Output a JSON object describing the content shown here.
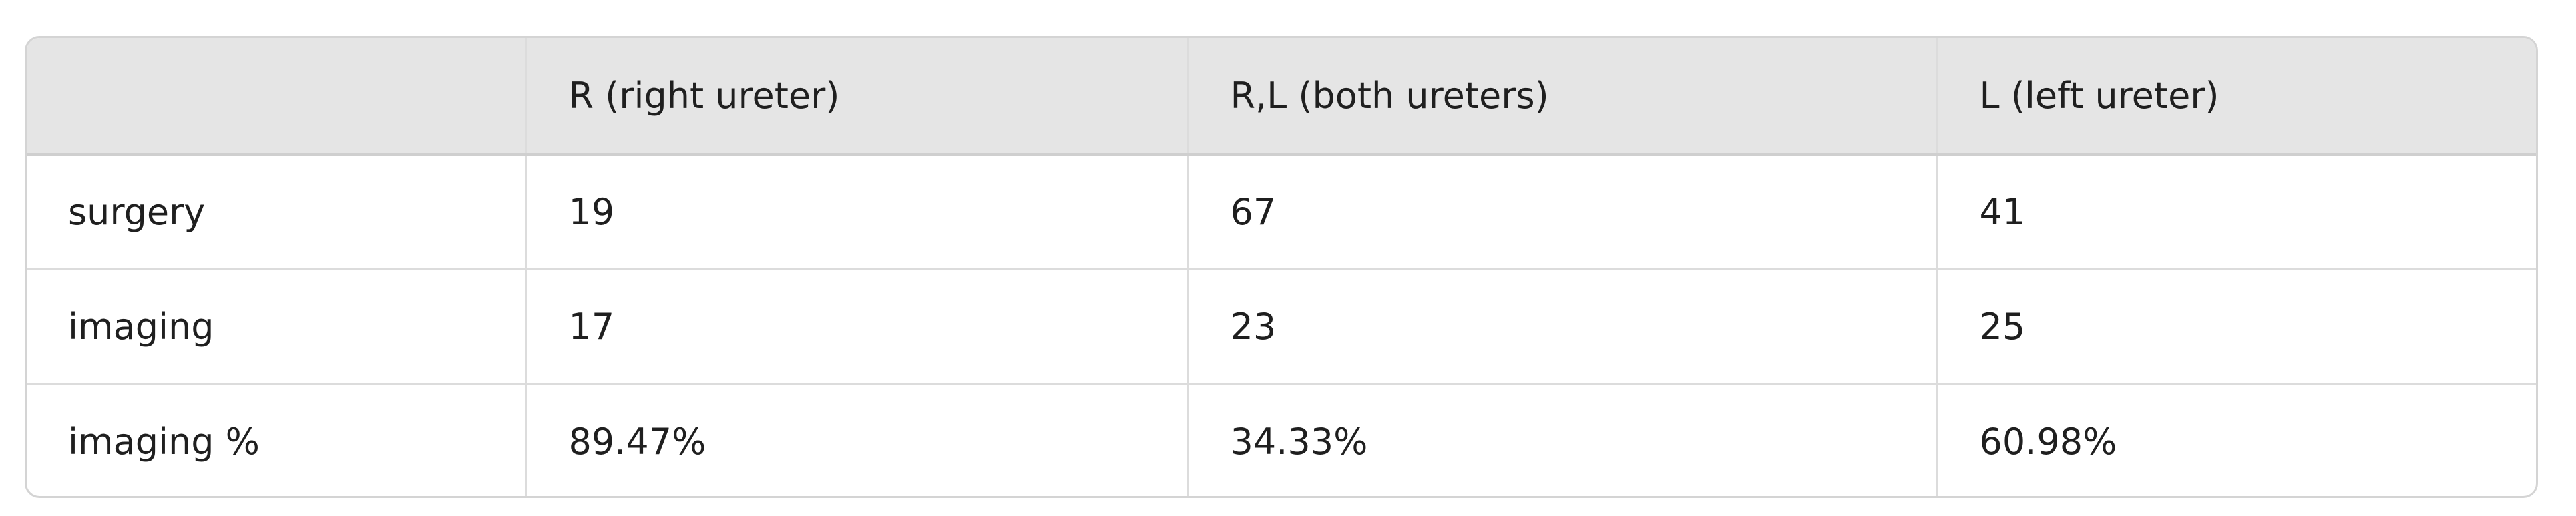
{
  "table": {
    "headers": [
      "",
      "R (right ureter)",
      "R,L (both ureters)",
      "L (left ureter)"
    ],
    "rows": [
      [
        "surgery",
        "19",
        "67",
        "41"
      ],
      [
        "imaging",
        "17",
        "23",
        "25"
      ],
      [
        "imaging %",
        "89.47%",
        "34.33%",
        "60.98%"
      ]
    ]
  }
}
